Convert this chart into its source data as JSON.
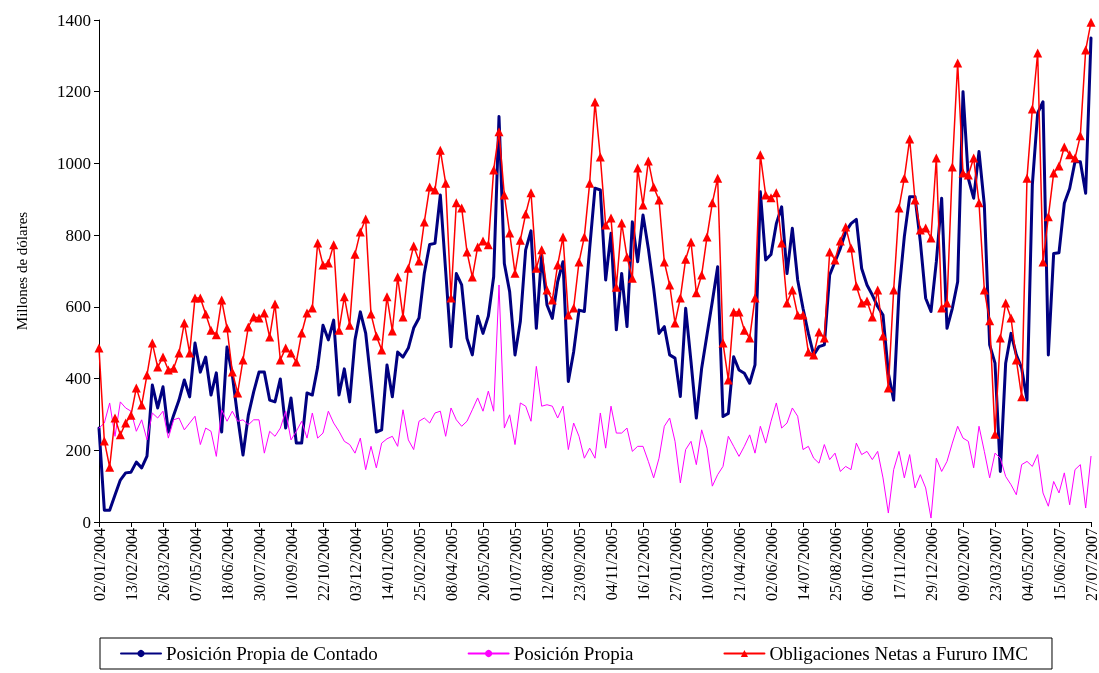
{
  "chart_data": {
    "type": "line",
    "ylabel": "Millones de dólares",
    "categories": [
      "02/01/2004",
      null,
      null,
      null,
      null,
      null,
      "13/02/2004",
      null,
      null,
      null,
      null,
      null,
      "26/03/2004",
      null,
      null,
      null,
      null,
      null,
      "07/05/2004",
      null,
      null,
      null,
      null,
      null,
      "18/06/2004",
      null,
      null,
      null,
      null,
      null,
      "30/07/2004",
      null,
      null,
      null,
      null,
      null,
      "10/09/2004",
      null,
      null,
      null,
      null,
      null,
      "22/10/2004",
      null,
      null,
      null,
      null,
      null,
      "03/12/2004",
      null,
      null,
      null,
      null,
      null,
      "14/01/2005",
      null,
      null,
      null,
      null,
      null,
      "25/02/2005",
      null,
      null,
      null,
      null,
      null,
      "08/04/2005",
      null,
      null,
      null,
      null,
      null,
      "20/05/2005",
      null,
      null,
      null,
      null,
      null,
      "01/07/2005",
      null,
      null,
      null,
      null,
      null,
      "12/08/2005",
      null,
      null,
      null,
      null,
      null,
      "23/09/2005",
      null,
      null,
      null,
      null,
      null,
      "04/11/2005",
      null,
      null,
      null,
      null,
      null,
      "16/12/2005",
      null,
      null,
      null,
      null,
      null,
      "27/01/2006",
      null,
      null,
      null,
      null,
      null,
      "10/03/2006",
      null,
      null,
      null,
      null,
      null,
      "21/04/2006",
      null,
      null,
      null,
      null,
      null,
      "02/06/2006",
      null,
      null,
      null,
      null,
      null,
      "14/07/2006",
      null,
      null,
      null,
      null,
      null,
      "25/08/2006",
      null,
      null,
      null,
      null,
      null,
      "06/10/2006",
      null,
      null,
      null,
      null,
      null,
      "17/11/2006",
      null,
      null,
      null,
      null,
      null,
      "29/12/2006",
      null,
      null,
      null,
      null,
      null,
      "09/02/2007",
      null,
      null,
      null,
      null,
      null,
      "23/03/2007",
      null,
      null,
      null,
      null,
      null,
      "04/05/2007",
      null,
      null,
      null,
      null,
      null,
      "15/06/2007",
      null,
      null,
      null,
      null,
      null,
      "27/07/2007"
    ],
    "series": [
      {
        "name": "Posición Propia de Contado",
        "color": "#000080",
        "marker": "none",
        "values": [
          262,
          33,
          33,
          75,
          117,
          137,
          139,
          167,
          151,
          184,
          382,
          318,
          377,
          251,
          298,
          340,
          396,
          349,
          499,
          418,
          460,
          354,
          416,
          251,
          488,
          410,
          293,
          187,
          298,
          363,
          418,
          418,
          340,
          335,
          399,
          262,
          346,
          220,
          220,
          360,
          354,
          432,
          549,
          508,
          563,
          354,
          427,
          335,
          508,
          586,
          527,
          390,
          251,
          257,
          438,
          349,
          474,
          460,
          485,
          541,
          569,
          694,
          774,
          777,
          912,
          700,
          489,
          693,
          661,
          512,
          466,
          574,
          526,
          574,
          684,
          1131,
          721,
          642,
          466,
          559,
          759,
          812,
          540,
          745,
          605,
          568,
          670,
          726,
          392,
          475,
          591,
          587,
          763,
          931,
          926,
          675,
          805,
          536,
          693,
          545,
          837,
          726,
          856,
          763,
          652,
          526,
          545,
          466,
          457,
          350,
          596,
          447,
          290,
          429,
          522,
          615,
          712,
          294,
          303,
          461,
          424,
          415,
          387,
          438,
          921,
          731,
          746,
          832,
          879,
          693,
          819,
          675,
          596,
          526,
          466,
          489,
          494,
          689,
          726,
          763,
          809,
          832,
          844,
          707,
          661,
          633,
          601,
          577,
          415,
          340,
          642,
          796,
          907,
          907,
          782,
          624,
          587,
          726,
          903,
          540,
          596,
          670,
          1200,
          958,
          903,
          1033,
          884,
          494,
          443,
          141,
          443,
          526,
          466,
          429,
          340,
          940,
          1140,
          1172,
          466,
          749,
          751,
          889,
          930,
          1005,
          1005,
          917,
          1350
        ]
      },
      {
        "name": "Posición Propia",
        "color": "#ff00ff",
        "marker": "none",
        "values": [
          262,
          276,
          332,
          239,
          335,
          318,
          309,
          253,
          285,
          229,
          304,
          290,
          309,
          234,
          285,
          290,
          257,
          276,
          295,
          216,
          262,
          253,
          183,
          313,
          281,
          309,
          281,
          285,
          271,
          285,
          285,
          192,
          253,
          239,
          262,
          309,
          229,
          253,
          281,
          234,
          304,
          234,
          248,
          309,
          276,
          253,
          225,
          216,
          192,
          234,
          146,
          211,
          151,
          220,
          232,
          239,
          211,
          313,
          229,
          202,
          281,
          290,
          276,
          304,
          309,
          239,
          318,
          285,
          267,
          281,
          313,
          346,
          309,
          365,
          309,
          661,
          262,
          299,
          216,
          332,
          323,
          281,
          434,
          323,
          327,
          323,
          290,
          323,
          202,
          276,
          239,
          178,
          206,
          178,
          304,
          206,
          323,
          248,
          248,
          262,
          197,
          211,
          211,
          169,
          123,
          178,
          267,
          290,
          225,
          109,
          202,
          225,
          160,
          257,
          206,
          100,
          132,
          155,
          239,
          211,
          183,
          211,
          243,
          192,
          267,
          220,
          281,
          332,
          262,
          276,
          318,
          295,
          202,
          211,
          178,
          164,
          216,
          174,
          192,
          141,
          155,
          146,
          220,
          188,
          197,
          174,
          197,
          123,
          25,
          146,
          197,
          123,
          188,
          95,
          132,
          95,
          11,
          178,
          141,
          169,
          220,
          267,
          234,
          225,
          151,
          267,
          197,
          123,
          192,
          178,
          127,
          104,
          76,
          160,
          169,
          155,
          188,
          81,
          44,
          113,
          81,
          137,
          48,
          146,
          160,
          39,
          183
        ]
      },
      {
        "name": "Obligaciones Netas a Fururo IMC",
        "color": "#ff0000",
        "marker": "triangle",
        "values": [
          485,
          226,
          153,
          290,
          243,
          276,
          298,
          374,
          326,
          410,
          499,
          432,
          460,
          424,
          429,
          471,
          555,
          471,
          625,
          625,
          580,
          535,
          522,
          619,
          541,
          418,
          360,
          452,
          544,
          572,
          569,
          583,
          516,
          608,
          452,
          485,
          471,
          446,
          527,
          583,
          597,
          778,
          717,
          722,
          773,
          535,
          628,
          549,
          747,
          809,
          845,
          580,
          519,
          480,
          628,
          533,
          683,
          572,
          708,
          770,
          728,
          837,
          934,
          926,
          1037,
          945,
          625,
          890,
          876,
          753,
          683,
          767,
          784,
          773,
          982,
          1088,
          912,
          806,
          694,
          786,
          859,
          918,
          708,
          759,
          647,
          619,
          717,
          795,
          577,
          597,
          725,
          795,
          945,
          1171,
          1018,
          828,
          848,
          655,
          834,
          739,
          680,
          987,
          884,
          1007,
          934,
          898,
          725,
          661,
          555,
          625,
          733,
          781,
          639,
          689,
          795,
          890,
          959,
          499,
          396,
          586,
          586,
          535,
          513,
          625,
          1024,
          912,
          904,
          918,
          778,
          611,
          647,
          577,
          577,
          474,
          466,
          530,
          513,
          753,
          731,
          784,
          823,
          764,
          658,
          611,
          616,
          572,
          647,
          519,
          374,
          647,
          876,
          959,
          1068,
          898,
          814,
          820,
          792,
          1015,
          597,
          611,
          990,
          1280,
          973,
          968,
          1015,
          890,
          647,
          561,
          245,
          513,
          611,
          569,
          452,
          349,
          959,
          1152,
          1308,
          725,
          851,
          973,
          993,
          1046,
          1024,
          1015,
          1077,
          1316,
          1394
        ]
      }
    ],
    "ylim": [
      0,
      1400
    ],
    "yticks": [
      0,
      200,
      400,
      600,
      800,
      1000,
      1200,
      1400
    ],
    "legend": "bottom"
  }
}
